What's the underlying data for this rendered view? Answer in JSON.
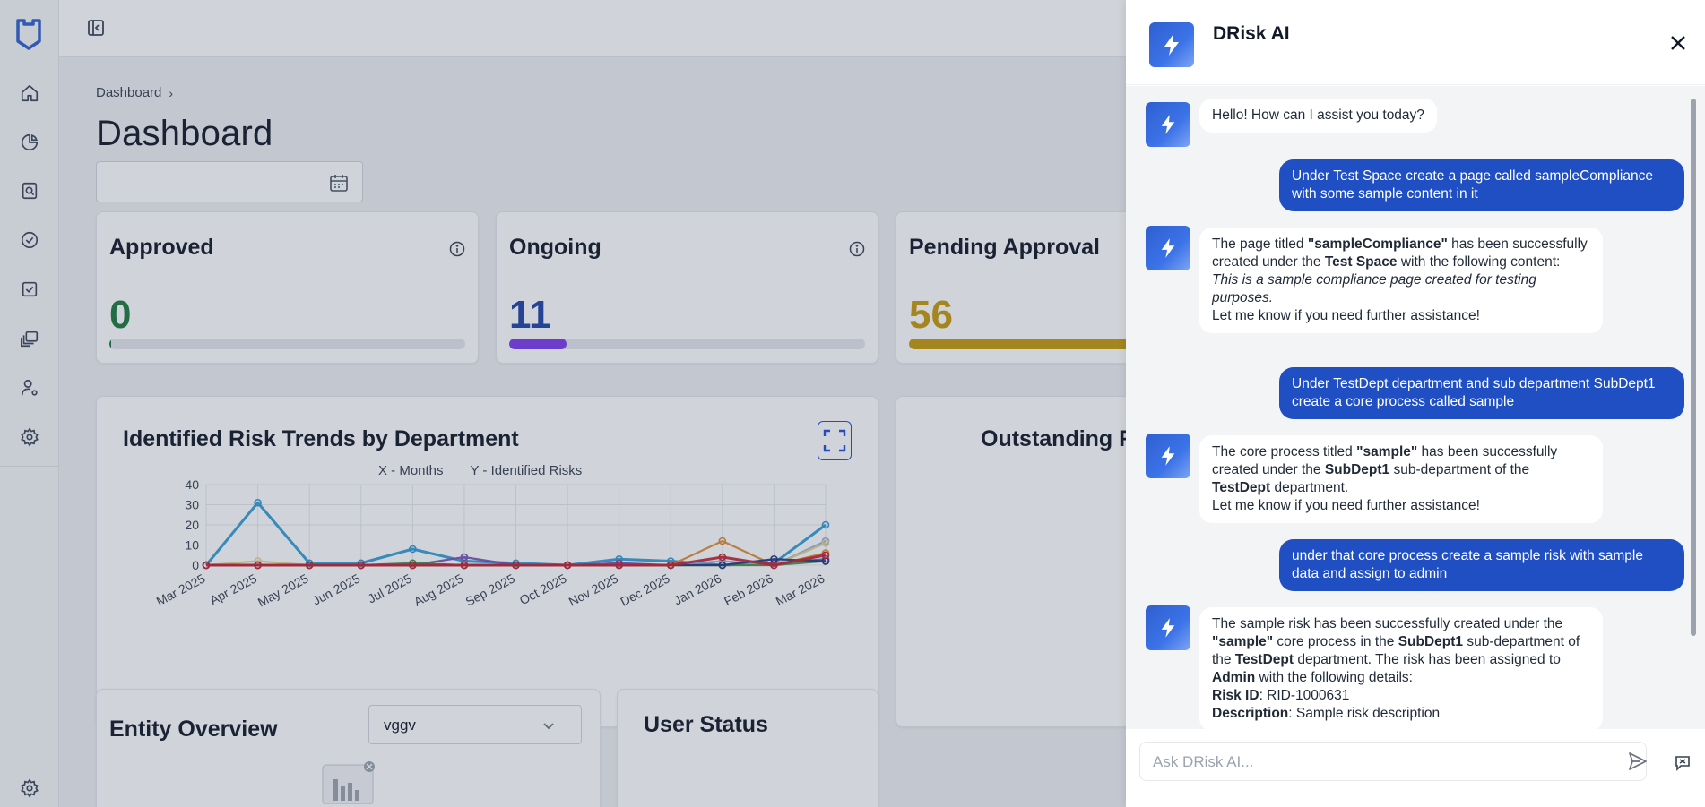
{
  "colors": {
    "accent": "#1f4fc2",
    "approved": "#1e7a3c",
    "ongoing": "#2043a8",
    "ongoing_bar": "#7c3aed",
    "pending": "#c79a0a"
  },
  "sidebar": {
    "items": [
      {
        "icon": "home-icon"
      },
      {
        "icon": "pie-chart-icon"
      },
      {
        "icon": "document-search-icon"
      },
      {
        "icon": "check-circle-icon"
      },
      {
        "icon": "checkbox-icon"
      },
      {
        "icon": "folders-icon"
      },
      {
        "icon": "user-settings-icon"
      },
      {
        "icon": "gear-icon"
      }
    ],
    "bottom_icon": "gear-icon"
  },
  "breadcrumb": {
    "item": "Dashboard",
    "separator": "›"
  },
  "page": {
    "title": "Dashboard",
    "date_placeholder": ""
  },
  "stats": [
    {
      "title": "Approved",
      "value": "0",
      "progress": 0.005
    },
    {
      "title": "Ongoing",
      "value": "11",
      "progress": 0.16
    },
    {
      "title": "Pending Approval",
      "value": "56",
      "progress": 0.82
    }
  ],
  "risk_chart": {
    "title": "Identified Risk Trends by Department",
    "legend_x": "X - Months",
    "legend_y": "Y - Identified Risks"
  },
  "chart_data": {
    "type": "line",
    "title": "Identified Risk Trends by Department",
    "xlabel": "X - Months",
    "ylabel": "Y - Identified Risks",
    "categories": [
      "Mar 2025",
      "Apr 2025",
      "May 2025",
      "Jun 2025",
      "Jul 2025",
      "Aug 2025",
      "Sep 2025",
      "Oct 2025",
      "Nov 2025",
      "Dec 2025",
      "Jan 2026",
      "Feb 2026",
      "Mar 2026"
    ],
    "yticks": [
      "40",
      "30",
      "20",
      "10",
      "0"
    ],
    "ylim": [
      0,
      40
    ],
    "grid": true,
    "series": [
      {
        "color": "#2b9bd3",
        "values": [
          0,
          31,
          1,
          1,
          8,
          2,
          1,
          0,
          3,
          2,
          0,
          1,
          20
        ]
      },
      {
        "color": "#e08a2e",
        "values": [
          0,
          0,
          0,
          0,
          0,
          0,
          0,
          0,
          0,
          0,
          12,
          0,
          6
        ]
      },
      {
        "color": "#7a4eb5",
        "values": [
          0,
          0,
          0,
          0,
          0,
          4,
          0,
          0,
          1,
          0,
          0,
          1,
          3
        ]
      },
      {
        "color": "#8fb3e6",
        "values": [
          0,
          0,
          0,
          0,
          0,
          0,
          0,
          0,
          0,
          0,
          2,
          0,
          12
        ]
      },
      {
        "color": "#e7d28b",
        "values": [
          0,
          2,
          0,
          0,
          0,
          0,
          0,
          0,
          0,
          0,
          0,
          0,
          11
        ]
      },
      {
        "color": "#3d8f4e",
        "values": [
          0,
          0,
          0,
          0,
          1,
          0,
          0,
          0,
          0,
          0,
          0,
          0,
          2
        ]
      },
      {
        "color": "#1d3a80",
        "values": [
          0,
          0,
          0,
          0,
          0,
          0,
          0,
          0,
          0,
          0,
          0,
          3,
          2
        ]
      },
      {
        "color": "#c8202f",
        "values": [
          0,
          0,
          0,
          0,
          0,
          0,
          0,
          0,
          0,
          0,
          4,
          0,
          5
        ]
      }
    ]
  },
  "outstanding": {
    "title": "Outstanding Risks"
  },
  "entity": {
    "title": "Entity Overview",
    "select_value": "vggv"
  },
  "user_status": {
    "title": "User Status"
  },
  "chat": {
    "name": "DRisk AI",
    "input_placeholder": "Ask DRisk AI...",
    "greeting": "Hello! How can I assist you today?",
    "user1": "Under Test Space create a page called sampleCompliance with some sample content in it",
    "bot2": {
      "p1a": "The page titled ",
      "p1b": "\"sampleCompliance\"",
      "p1c": " has been successfully created under the ",
      "p1d": "Test Space",
      "p1e": " with the following content:",
      "italic": "This is a sample compliance page created for testing purposes.",
      "closing": "Let me know if you need further assistance!"
    },
    "user2": "Under TestDept department and sub department SubDept1 create a core process called sample",
    "bot3": {
      "p1a": "The core process titled ",
      "p1b": "\"sample\"",
      "p1c": " has been successfully created under the ",
      "p1d": "SubDept1",
      "p1e": " sub-department of the ",
      "p1f": "TestDept",
      "p1g": " department.",
      "closing": "Let me know if you need further assistance!"
    },
    "user3": "under that core process create a sample risk with sample data and assign to admin",
    "bot4": {
      "p1a": "The sample risk has been successfully created under the ",
      "p1b": "\"sample\"",
      "p1c": " core process in the ",
      "p1d": "SubDept1",
      "p1e": " sub-department of the ",
      "p1f": "TestDept",
      "p1g": " department. The risk has been assigned to ",
      "p1h": "Admin",
      "p1i": " with the following details:",
      "risk_id_label": "Risk ID",
      "risk_id": ": RID-1000631",
      "desc_label": "Description",
      "desc": ": Sample risk description"
    }
  }
}
